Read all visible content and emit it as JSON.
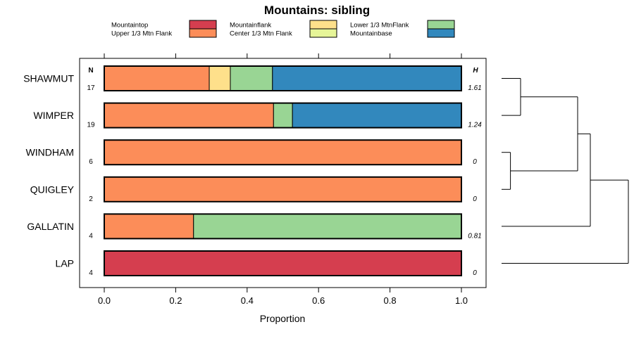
{
  "chart_data": {
    "type": "bar",
    "orientation": "horizontal",
    "stacked": true,
    "title": "Mountains: sibling",
    "xlabel": "Proportion",
    "ylabel": "",
    "xlim": [
      0,
      1
    ],
    "xticks": [
      "0.0",
      "0.2",
      "0.4",
      "0.6",
      "0.8",
      "1.0"
    ],
    "n_header": "N",
    "h_header": "H",
    "legend": [
      {
        "label": "Mountaintop",
        "color": "#D53E4F"
      },
      {
        "label": "Upper 1/3 Mtn Flank",
        "color": "#FC8D59"
      },
      {
        "label": "Mountainflank",
        "color": "#FEE08B"
      },
      {
        "label": "Center 1/3 Mtn Flank",
        "color": "#E6F598"
      },
      {
        "label": "Lower 1/3 MtnFlank",
        "color": "#99D594"
      },
      {
        "label": "Mountainbase",
        "color": "#3288BD"
      }
    ],
    "categories": [
      "SHAWMUT",
      "WIMPER",
      "WINDHAM",
      "QUIGLEY",
      "GALLATIN",
      "LAP"
    ],
    "series": [
      {
        "name": "Mountaintop",
        "values": [
          0,
          0,
          0,
          0,
          0,
          1.0
        ]
      },
      {
        "name": "Upper 1/3 Mtn Flank",
        "values": [
          0.294,
          0.474,
          1.0,
          1.0,
          0.25,
          0
        ]
      },
      {
        "name": "Mountainflank",
        "values": [
          0.059,
          0,
          0,
          0,
          0,
          0
        ]
      },
      {
        "name": "Center 1/3 Mtn Flank",
        "values": [
          0,
          0,
          0,
          0,
          0,
          0
        ]
      },
      {
        "name": "Lower 1/3 MtnFlank",
        "values": [
          0.118,
          0.053,
          0,
          0,
          0.75,
          0
        ]
      },
      {
        "name": "Mountainbase",
        "values": [
          0.529,
          0.474,
          0,
          0,
          0,
          0
        ]
      }
    ],
    "n_values": [
      "17",
      "19",
      "6",
      "2",
      "4",
      "4"
    ],
    "h_values": [
      "1.61",
      "1.24",
      "0",
      "0",
      "0.81",
      "0"
    ],
    "dendrogram": {
      "merge_order": [
        [
          "WINDHAM",
          "QUIGLEY"
        ],
        [
          "SHAWMUT",
          "WIMPER"
        ],
        [
          "SHAWMUT+WIMPER",
          "WINDHAM+QUIGLEY"
        ],
        [
          "SHAWMUT+WIMPER+WINDHAM+QUIGLEY",
          "GALLATIN"
        ],
        [
          "ALL",
          "LAP"
        ]
      ],
      "heights": [
        0.07,
        0.15,
        0.6,
        0.7,
        1.0
      ]
    }
  }
}
